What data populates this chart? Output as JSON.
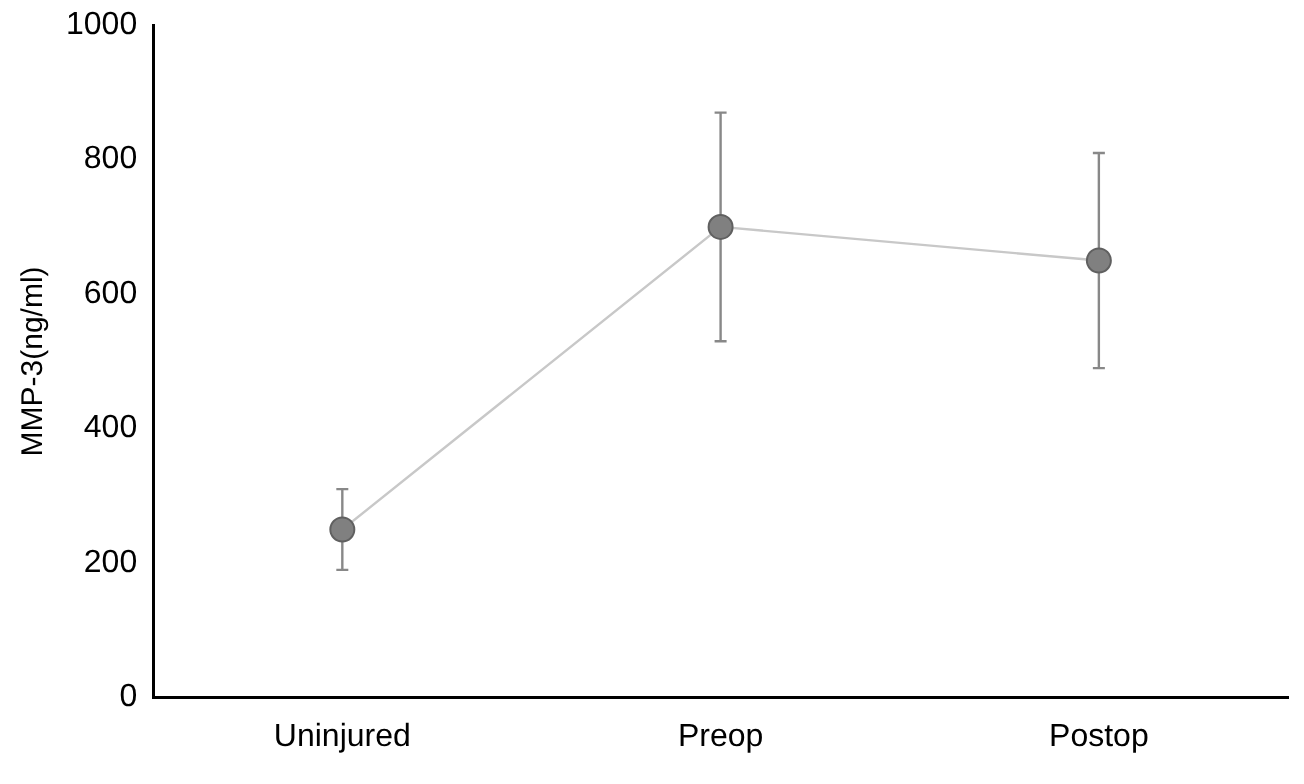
{
  "chart_data": {
    "type": "line",
    "ylabel": "MMP-3(ng/ml)",
    "categories": [
      "Uninjured",
      "Preop",
      "Postop"
    ],
    "series": [
      {
        "color": "#808080",
        "values": [
          250,
          700,
          650
        ],
        "errors": [
          [
            190,
            310
          ],
          [
            530,
            870
          ],
          [
            490,
            810
          ]
        ]
      }
    ],
    "ylim": [
      0,
      1000
    ],
    "yticks": [
      0,
      200,
      400,
      600,
      800,
      1000
    ],
    "grid": false,
    "legend": false,
    "marker": "circle",
    "line_style": "solid"
  }
}
